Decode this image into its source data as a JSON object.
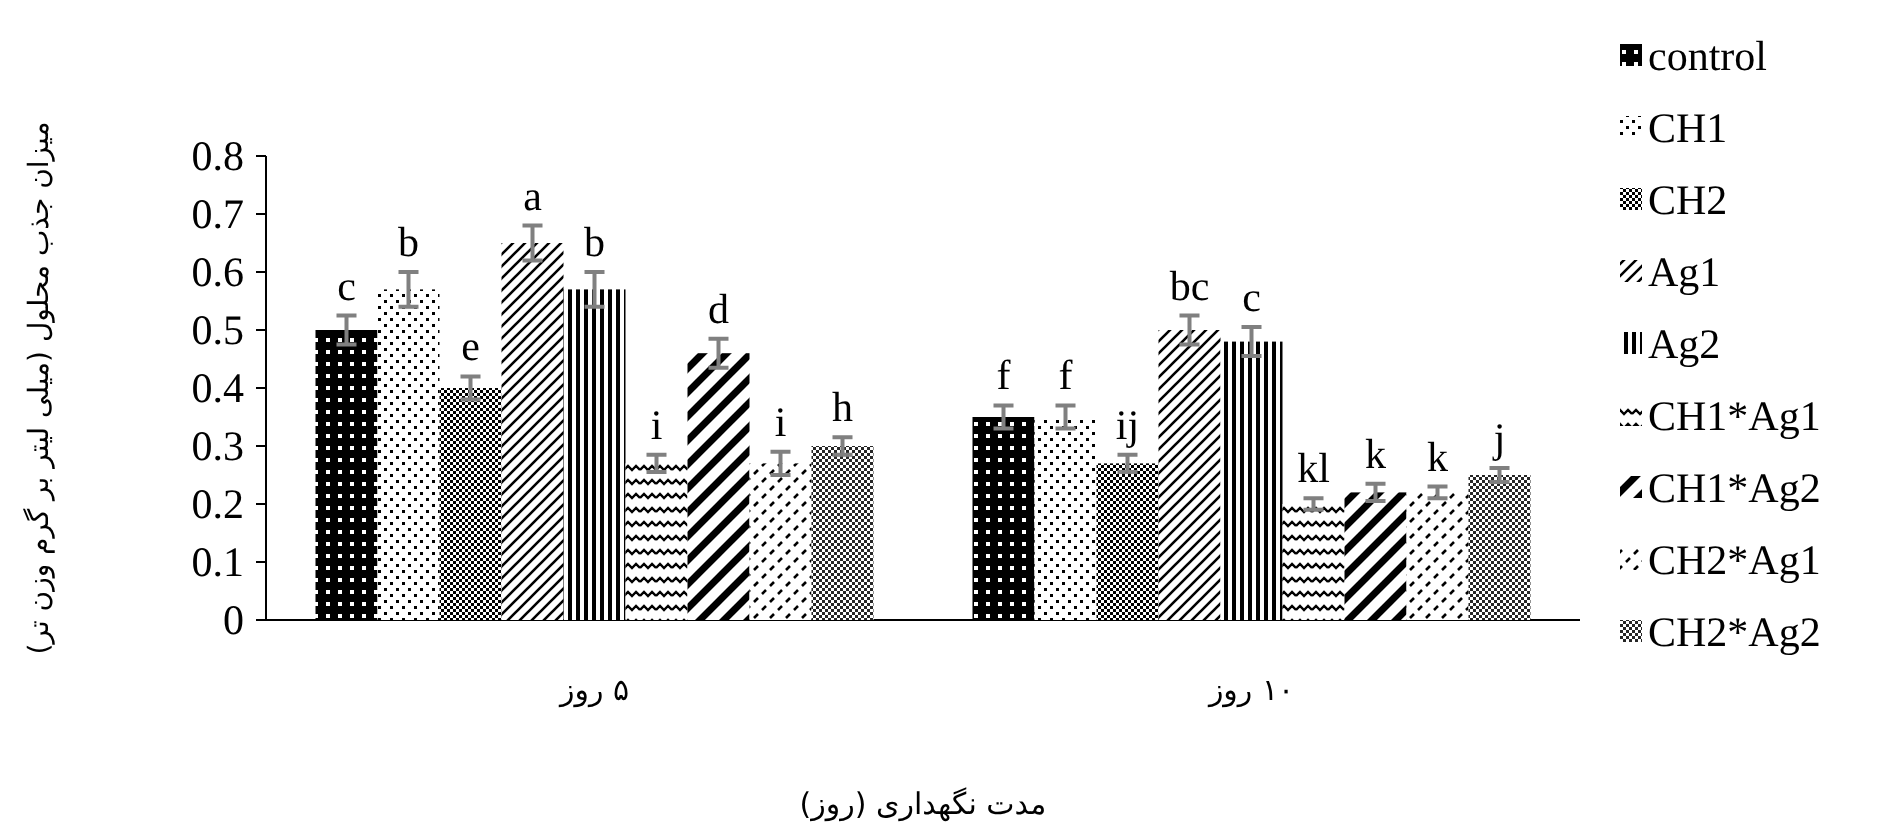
{
  "chart_data": {
    "type": "bar",
    "xlabel": "مدت نگهداری (روز)",
    "ylabel": "میزان جذب محلول (میلی لیتر بر گرم وزن تر)",
    "categories": [
      "۵ روز",
      "۱۰ روز"
    ],
    "ylim": [
      0,
      0.8
    ],
    "yticks": [
      0,
      0.1,
      0.2,
      0.3,
      0.4,
      0.5,
      0.6,
      0.7,
      0.8
    ],
    "legend": "right",
    "grid": false,
    "series": [
      {
        "name": "control",
        "color": "#000000",
        "values": [
          0.5,
          0.35
        ],
        "errors": [
          0.025,
          0.02
        ],
        "value_labels": [
          "c",
          "f"
        ]
      },
      {
        "name": "CH1",
        "color": "#000000",
        "values": [
          0.57,
          0.35
        ],
        "errors": [
          0.03,
          0.02
        ],
        "value_labels": [
          "b",
          "f"
        ]
      },
      {
        "name": "CH2",
        "color": "#000000",
        "values": [
          0.4,
          0.27
        ],
        "errors": [
          0.02,
          0.015
        ],
        "value_labels": [
          "e",
          "ij"
        ]
      },
      {
        "name": "Ag1",
        "color": "#000000",
        "values": [
          0.65,
          0.5
        ],
        "errors": [
          0.03,
          0.025
        ],
        "value_labels": [
          "a",
          "bc"
        ]
      },
      {
        "name": "Ag2",
        "color": "#000000",
        "values": [
          0.57,
          0.48
        ],
        "errors": [
          0.03,
          0.025
        ],
        "value_labels": [
          "b",
          "c"
        ]
      },
      {
        "name": "CH1*Ag1",
        "color": "#000000",
        "values": [
          0.27,
          0.2
        ],
        "errors": [
          0.015,
          0.01
        ],
        "value_labels": [
          "i",
          "kl"
        ]
      },
      {
        "name": "CH1*Ag2",
        "color": "#000000",
        "values": [
          0.46,
          0.22
        ],
        "errors": [
          0.025,
          0.015
        ],
        "value_labels": [
          "d",
          "k"
        ]
      },
      {
        "name": "CH2*Ag1",
        "color": "#000000",
        "values": [
          0.27,
          0.22
        ],
        "errors": [
          0.02,
          0.01
        ],
        "value_labels": [
          "i",
          "k"
        ]
      },
      {
        "name": "CH2*Ag2",
        "color": "#000000",
        "values": [
          0.3,
          0.25
        ],
        "errors": [
          0.015,
          0.012
        ],
        "value_labels": [
          "h",
          "j"
        ]
      }
    ]
  }
}
